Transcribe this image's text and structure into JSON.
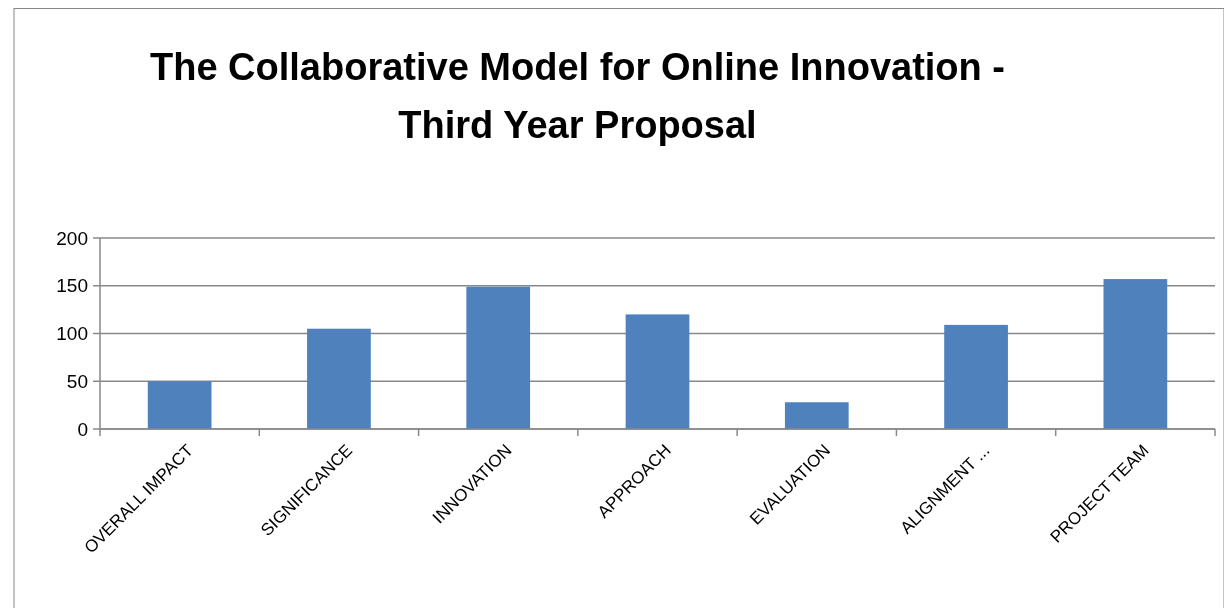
{
  "chart_data": {
    "type": "bar",
    "title": "The Collaborative Model for Online Innovation - Third Year Proposal",
    "categories": [
      "OVERALL IMPACT",
      "SIGNIFICANCE",
      "INNOVATION",
      "APPROACH",
      "EVALUATION",
      "ALIGNMENT ...",
      "PROJECT TEAM"
    ],
    "values": [
      50,
      105,
      149,
      120,
      28,
      109,
      157
    ],
    "color": "#4f81bd",
    "ylim": [
      0,
      200
    ],
    "yticks": [
      0,
      50,
      100,
      150,
      200
    ],
    "grid": "y"
  }
}
